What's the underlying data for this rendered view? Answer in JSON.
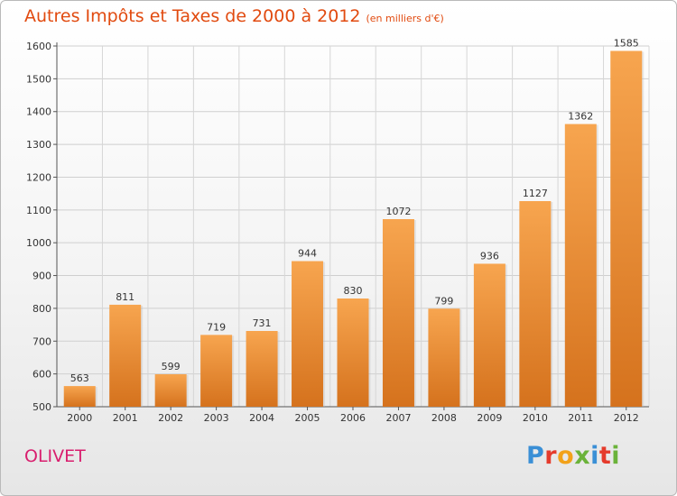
{
  "header": {
    "title": "Autres Impôts et Taxes de 2000 à 2012",
    "subtitle": "(en milliers d'€)"
  },
  "footer": {
    "commune": "OLIVET",
    "brand": "Proxiti"
  },
  "colors": {
    "title": "#e14a0f",
    "commune": "#d91e6e",
    "bar_top": "#f7a54f",
    "bar_bottom": "#d5721d",
    "brand_letters": [
      "#3a8fd6",
      "#e53b2c",
      "#f2a21a",
      "#6bb33a",
      "#3a8fd6",
      "#e53b2c",
      "#6bb33a"
    ]
  },
  "chart_data": {
    "type": "bar",
    "categories": [
      "2000",
      "2001",
      "2002",
      "2003",
      "2004",
      "2005",
      "2006",
      "2007",
      "2008",
      "2009",
      "2010",
      "2011",
      "2012"
    ],
    "values": [
      563,
      811,
      599,
      719,
      731,
      944,
      830,
      1072,
      799,
      936,
      1127,
      1362,
      1585
    ],
    "title": "Autres Impôts et Taxes de 2000 à 2012",
    "subtitle": "(en milliers d'€)",
    "xlabel": "",
    "ylabel": "",
    "ylim": [
      500,
      1600
    ],
    "yticks": [
      500,
      600,
      700,
      800,
      900,
      1000,
      1100,
      1200,
      1300,
      1400,
      1500,
      1600
    ],
    "grid": true,
    "legend": "none"
  }
}
